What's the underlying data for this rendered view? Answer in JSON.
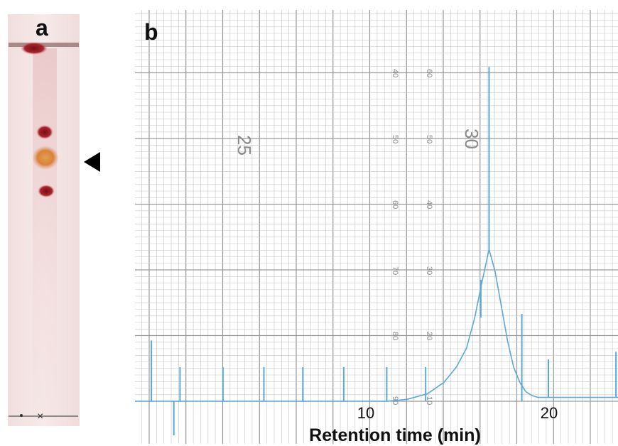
{
  "panel_a": {
    "label": "a"
  },
  "panel_b": {
    "label": "b",
    "paper_numbers": {
      "big": [
        "25",
        "30"
      ],
      "left_column": [
        "40",
        "50",
        "60",
        "70",
        "80",
        "90"
      ],
      "right_column": [
        "60",
        "50",
        "40",
        "30",
        "20",
        "10"
      ]
    }
  },
  "chart_data": {
    "type": "line",
    "xlabel": "Retention time (min)",
    "ylabel": "",
    "xlim": [
      -0.3,
      23.3
    ],
    "ylim": [
      0,
      100
    ],
    "x_ticks": [
      10,
      20
    ],
    "grid": true,
    "colors": {
      "trace": "#5ba9d6",
      "paper_grid": "#c8c8c8",
      "paper_grid_major": "#9a9a9a",
      "background": "#ffffff"
    },
    "series": [
      {
        "x": [
          -0.3,
          12.0,
          13.0,
          14.0,
          14.8,
          15.4,
          15.9,
          16.3,
          16.6,
          16.8,
          17.0,
          17.3,
          17.6,
          17.9,
          18.2,
          18.5,
          18.8,
          19.1,
          19.4,
          20.0,
          23.3
        ],
        "y": [
          0,
          0,
          0.5,
          2,
          5,
          9,
          14,
          22,
          30,
          35,
          40,
          34,
          25,
          16,
          9,
          5,
          2.5,
          1.5,
          1.0,
          1.0,
          1.0
        ]
      }
    ],
    "event_marks_x": [
      0.5,
      1.9,
      4.0,
      6.0,
      7.9,
      9.9,
      12.0,
      13.9,
      16.6,
      18.6,
      19.9,
      23.2
    ],
    "event_marks_height": [
      16,
      9,
      9,
      9,
      9,
      9,
      9,
      9,
      10,
      23,
      10,
      12
    ]
  }
}
